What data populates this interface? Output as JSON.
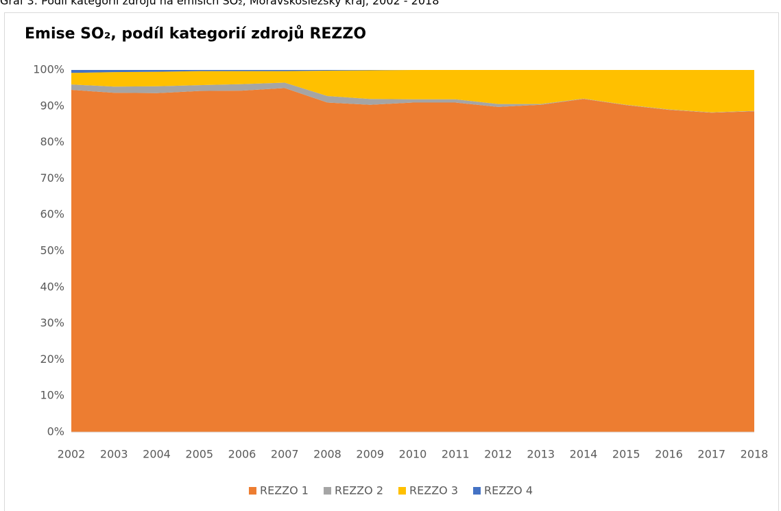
{
  "caption": "Graf 3: Podíl kategorií zdrojů na emisích SO₂, Moravskoslezský kraj, 2002 - 2018",
  "chart_data": {
    "type": "stacked_area",
    "title": "Emise SO₂, podíl kategorií zdrojů REZZO",
    "categories": [
      "2002",
      "2003",
      "2004",
      "2005",
      "2006",
      "2007",
      "2008",
      "2009",
      "2010",
      "2011",
      "2012",
      "2013",
      "2014",
      "2015",
      "2016",
      "2017",
      "2018"
    ],
    "series": [
      {
        "name": "REZZO 1",
        "color": "#ed7d31",
        "values": [
          94.5,
          93.7,
          93.6,
          94.2,
          94.3,
          95.0,
          91.0,
          90.4,
          91.0,
          91.0,
          89.8,
          90.4,
          92.0,
          90.3,
          89.0,
          88.2,
          88.6
        ]
      },
      {
        "name": "REZZO 2",
        "color": "#a5a5a5",
        "values": [
          1.5,
          1.7,
          1.9,
          1.6,
          1.8,
          1.5,
          1.8,
          1.6,
          0.9,
          0.9,
          0.8,
          0.2,
          0.1,
          0.1,
          0.1,
          0.1,
          0.1
        ]
      },
      {
        "name": "REZZO 3",
        "color": "#ffc000",
        "values": [
          3.2,
          4.0,
          4.0,
          3.9,
          3.6,
          3.2,
          7.0,
          7.9,
          8.1,
          8.1,
          9.4,
          9.4,
          7.9,
          9.6,
          10.9,
          11.7,
          11.3
        ]
      },
      {
        "name": "REZZO 4",
        "color": "#4472c4",
        "values": [
          0.8,
          0.6,
          0.5,
          0.3,
          0.3,
          0.3,
          0.2,
          0.1,
          0,
          0,
          0,
          0,
          0,
          0,
          0,
          0,
          0
        ]
      }
    ],
    "ylim": [
      0,
      100
    ],
    "yticks": [
      {
        "value": 0,
        "label": "0%"
      },
      {
        "value": 10,
        "label": "10%"
      },
      {
        "value": 20,
        "label": "20%"
      },
      {
        "value": 30,
        "label": "30%"
      },
      {
        "value": 40,
        "label": "40%"
      },
      {
        "value": 50,
        "label": "50%"
      },
      {
        "value": 60,
        "label": "60%"
      },
      {
        "value": 70,
        "label": "70%"
      },
      {
        "value": 80,
        "label": "80%"
      },
      {
        "value": 90,
        "label": "90%"
      },
      {
        "value": 100,
        "label": "100%"
      }
    ],
    "legend": "bottom"
  }
}
